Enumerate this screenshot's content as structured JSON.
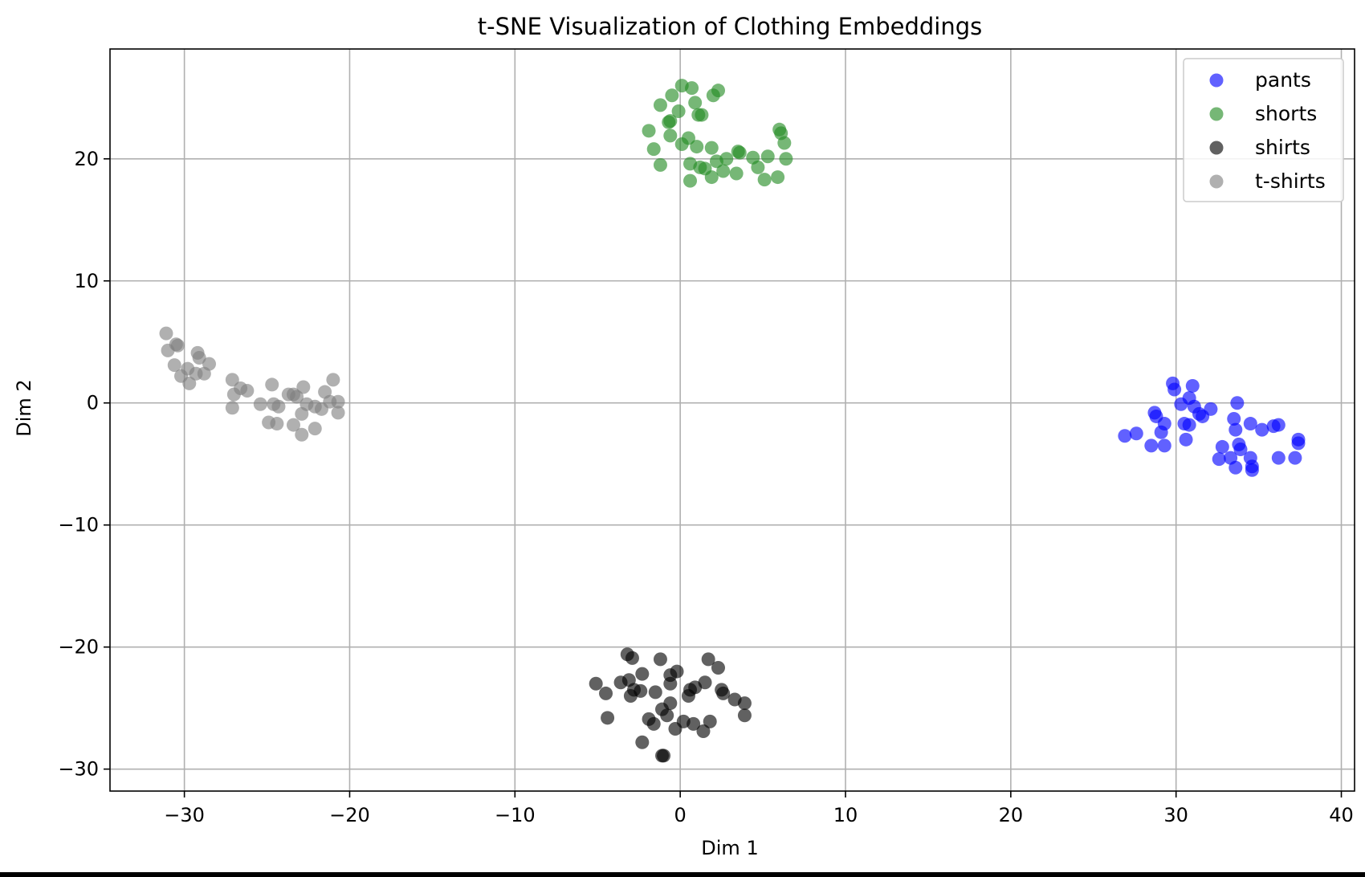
{
  "chart_data": {
    "type": "scatter",
    "title": "t-SNE Visualization of Clothing Embeddings",
    "xlabel": "Dim 1",
    "ylabel": "Dim 2",
    "xlim": [
      -34.5,
      40.8
    ],
    "ylim": [
      -31.8,
      29
    ],
    "xticks": [
      -30,
      -20,
      -10,
      0,
      10,
      20,
      30,
      40
    ],
    "yticks": [
      -30,
      -20,
      -10,
      0,
      10,
      20
    ],
    "xtick_labels": [
      "−30",
      "−20",
      "−10",
      "0",
      "10",
      "20",
      "30",
      "40"
    ],
    "ytick_labels": [
      "−30",
      "−20",
      "−10",
      "0",
      "10",
      "20"
    ],
    "grid": true,
    "legend_position": "top-right",
    "series": [
      {
        "name": "pants",
        "color": "#0000ff",
        "points": [
          [
            29.8,
            1.6
          ],
          [
            29.9,
            1.1
          ],
          [
            31.0,
            1.4
          ],
          [
            30.8,
            0.4
          ],
          [
            30.3,
            -0.1
          ],
          [
            31.1,
            -0.3
          ],
          [
            31.4,
            -0.9
          ],
          [
            32.1,
            -0.5
          ],
          [
            31.6,
            -1.1
          ],
          [
            33.7,
            0.0
          ],
          [
            28.7,
            -0.8
          ],
          [
            28.8,
            -1.1
          ],
          [
            29.3,
            -1.7
          ],
          [
            30.5,
            -1.7
          ],
          [
            30.8,
            -1.8
          ],
          [
            29.1,
            -2.4
          ],
          [
            30.6,
            -3.0
          ],
          [
            27.6,
            -2.5
          ],
          [
            26.9,
            -2.7
          ],
          [
            28.5,
            -3.5
          ],
          [
            29.3,
            -3.5
          ],
          [
            33.5,
            -1.3
          ],
          [
            34.5,
            -1.7
          ],
          [
            35.9,
            -1.9
          ],
          [
            36.2,
            -1.8
          ],
          [
            35.2,
            -2.2
          ],
          [
            33.6,
            -2.2
          ],
          [
            37.4,
            -3.0
          ],
          [
            37.4,
            -3.3
          ],
          [
            33.8,
            -3.4
          ],
          [
            32.8,
            -3.6
          ],
          [
            33.9,
            -3.8
          ],
          [
            32.6,
            -4.6
          ],
          [
            33.3,
            -4.5
          ],
          [
            34.5,
            -4.5
          ],
          [
            36.2,
            -4.5
          ],
          [
            37.2,
            -4.5
          ],
          [
            33.6,
            -5.3
          ],
          [
            34.6,
            -5.5
          ],
          [
            34.6,
            -5.2
          ]
        ]
      },
      {
        "name": "shorts",
        "color": "#228b22",
        "points": [
          [
            0.1,
            26.0
          ],
          [
            0.7,
            25.8
          ],
          [
            2.3,
            25.6
          ],
          [
            -0.5,
            25.2
          ],
          [
            2.0,
            25.2
          ],
          [
            -1.2,
            24.4
          ],
          [
            0.9,
            24.6
          ],
          [
            -0.1,
            23.9
          ],
          [
            1.1,
            23.6
          ],
          [
            1.3,
            23.6
          ],
          [
            -0.7,
            23.0
          ],
          [
            -0.6,
            23.1
          ],
          [
            -1.9,
            22.3
          ],
          [
            6.0,
            22.4
          ],
          [
            6.1,
            22.1
          ],
          [
            -0.6,
            21.9
          ],
          [
            0.5,
            21.7
          ],
          [
            0.1,
            21.2
          ],
          [
            1.0,
            21.0
          ],
          [
            6.3,
            21.3
          ],
          [
            -1.6,
            20.8
          ],
          [
            1.9,
            20.9
          ],
          [
            3.5,
            20.6
          ],
          [
            3.6,
            20.5
          ],
          [
            4.4,
            20.1
          ],
          [
            5.3,
            20.2
          ],
          [
            6.4,
            20.0
          ],
          [
            2.2,
            19.8
          ],
          [
            2.8,
            20.0
          ],
          [
            0.6,
            19.6
          ],
          [
            -1.2,
            19.5
          ],
          [
            1.2,
            19.3
          ],
          [
            1.5,
            19.2
          ],
          [
            2.6,
            19.0
          ],
          [
            4.7,
            19.3
          ],
          [
            3.4,
            18.8
          ],
          [
            1.9,
            18.5
          ],
          [
            0.6,
            18.2
          ],
          [
            5.1,
            18.3
          ],
          [
            5.9,
            18.5
          ]
        ]
      },
      {
        "name": "shirts",
        "color": "#000000",
        "points": [
          [
            -3.2,
            -20.6
          ],
          [
            -2.9,
            -20.9
          ],
          [
            -1.2,
            -21.0
          ],
          [
            1.7,
            -21.0
          ],
          [
            2.3,
            -21.7
          ],
          [
            -0.2,
            -22.0
          ],
          [
            -2.3,
            -22.2
          ],
          [
            -0.6,
            -22.3
          ],
          [
            -3.1,
            -22.7
          ],
          [
            -3.6,
            -22.9
          ],
          [
            -5.1,
            -23.0
          ],
          [
            -0.6,
            -23.0
          ],
          [
            1.5,
            -22.9
          ],
          [
            0.9,
            -23.3
          ],
          [
            0.6,
            -23.5
          ],
          [
            -2.4,
            -23.6
          ],
          [
            -2.8,
            -23.5
          ],
          [
            -4.5,
            -23.8
          ],
          [
            -3.0,
            -24.0
          ],
          [
            -1.5,
            -23.7
          ],
          [
            2.5,
            -23.5
          ],
          [
            2.6,
            -23.8
          ],
          [
            0.5,
            -24.0
          ],
          [
            3.3,
            -24.3
          ],
          [
            3.9,
            -24.6
          ],
          [
            -0.6,
            -24.6
          ],
          [
            -1.1,
            -25.1
          ],
          [
            -1.9,
            -25.9
          ],
          [
            -1.6,
            -26.3
          ],
          [
            -0.8,
            -25.6
          ],
          [
            0.8,
            -26.3
          ],
          [
            3.9,
            -25.6
          ],
          [
            -4.4,
            -25.8
          ],
          [
            0.2,
            -26.1
          ],
          [
            1.8,
            -26.1
          ],
          [
            -0.3,
            -26.7
          ],
          [
            1.4,
            -26.9
          ],
          [
            -2.3,
            -27.8
          ],
          [
            -1.1,
            -28.9
          ],
          [
            -1.0,
            -28.9
          ]
        ]
      },
      {
        "name": "t-shirts",
        "color": "#808080",
        "points": [
          [
            -31.1,
            5.7
          ],
          [
            -30.5,
            4.8
          ],
          [
            -30.4,
            4.7
          ],
          [
            -31.0,
            4.3
          ],
          [
            -29.2,
            4.1
          ],
          [
            -29.1,
            3.7
          ],
          [
            -30.6,
            3.1
          ],
          [
            -28.5,
            3.2
          ],
          [
            -29.8,
            2.8
          ],
          [
            -29.3,
            2.4
          ],
          [
            -30.2,
            2.2
          ],
          [
            -28.8,
            2.4
          ],
          [
            -29.7,
            1.6
          ],
          [
            -27.1,
            1.9
          ],
          [
            -26.6,
            1.2
          ],
          [
            -26.2,
            1.0
          ],
          [
            -27.0,
            0.7
          ],
          [
            -27.1,
            -0.4
          ],
          [
            -24.7,
            1.5
          ],
          [
            -22.8,
            1.3
          ],
          [
            -21.0,
            1.9
          ],
          [
            -21.5,
            0.9
          ],
          [
            -23.7,
            0.7
          ],
          [
            -23.4,
            0.7
          ],
          [
            -23.2,
            0.5
          ],
          [
            -25.4,
            -0.1
          ],
          [
            -24.6,
            -0.1
          ],
          [
            -24.3,
            -0.3
          ],
          [
            -22.6,
            -0.1
          ],
          [
            -21.2,
            0.1
          ],
          [
            -20.7,
            0.1
          ],
          [
            -22.1,
            -0.3
          ],
          [
            -21.7,
            -0.5
          ],
          [
            -22.9,
            -0.9
          ],
          [
            -20.7,
            -0.8
          ],
          [
            -24.9,
            -1.6
          ],
          [
            -24.4,
            -1.7
          ],
          [
            -23.4,
            -1.8
          ],
          [
            -22.1,
            -2.1
          ],
          [
            -22.9,
            -2.6
          ]
        ]
      }
    ]
  }
}
